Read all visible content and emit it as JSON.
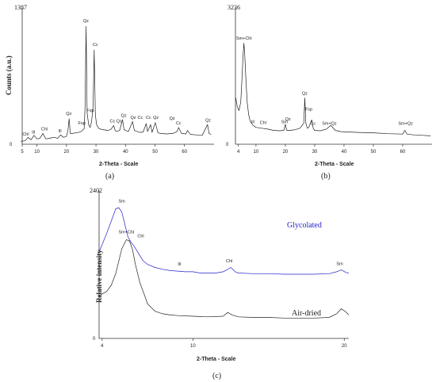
{
  "chart_data": [
    {
      "id": "a",
      "type": "line",
      "panel_label": "(a)",
      "xlabel": "2-Theta - Scale",
      "ylabel": "Counts (a.u.)",
      "xlim": [
        5,
        70
      ],
      "ylim": [
        0,
        1387
      ],
      "y_max_label": "1387",
      "y_zero_label": "0",
      "xticks": [
        5,
        10,
        20,
        30,
        40,
        50,
        60
      ],
      "color": "#222222",
      "series": [
        {
          "x": [
            4.5,
            6,
            7,
            8,
            9,
            10,
            11,
            12,
            13,
            14,
            15,
            16,
            17,
            18,
            19,
            20,
            20.5,
            20.9,
            21.3,
            22,
            23,
            24,
            25,
            26,
            26.3,
            26.65,
            27.0,
            27.5,
            28,
            28.5,
            29.0,
            29.4,
            29.8,
            30.2,
            31,
            32,
            33,
            34,
            35,
            36,
            36.5,
            37,
            38,
            39.0,
            39.5,
            40,
            41,
            42.4,
            43.0,
            44,
            45,
            46,
            47.0,
            47.5,
            48.5,
            49,
            50.1,
            51,
            52,
            54,
            56,
            57.5,
            58,
            59,
            60.5,
            61,
            62,
            64,
            66,
            67.8,
            68.3,
            69
          ],
          "y": [
            30,
            35,
            70,
            45,
            90,
            55,
            60,
            110,
            55,
            60,
            65,
            70,
            60,
            95,
            70,
            80,
            140,
            260,
            110,
            110,
            115,
            120,
            130,
            160,
            380,
            1200,
            320,
            200,
            170,
            230,
            380,
            960,
            300,
            200,
            160,
            150,
            145,
            140,
            150,
            190,
            140,
            130,
            140,
            250,
            150,
            140,
            130,
            230,
            140,
            130,
            120,
            125,
            210,
            130,
            200,
            120,
            220,
            115,
            110,
            105,
            110,
            130,
            170,
            110,
            105,
            140,
            100,
            95,
            90,
            200,
            110,
            100
          ]
        }
      ],
      "annotations": [
        {
          "text": "Chl",
          "x": 6.2,
          "y": 90
        },
        {
          "text": "Ill",
          "x": 8.8,
          "y": 110
        },
        {
          "text": "Chl",
          "x": 12.5,
          "y": 140
        },
        {
          "text": "Ill",
          "x": 17.8,
          "y": 120
        },
        {
          "text": "Qz",
          "x": 20.8,
          "y": 300
        },
        {
          "text": "Fsp",
          "x": 25.2,
          "y": 200
        },
        {
          "text": "Qz",
          "x": 26.6,
          "y": 1240
        },
        {
          "text": "Fsp",
          "x": 28.1,
          "y": 330
        },
        {
          "text": "Cc",
          "x": 29.8,
          "y": 1000
        },
        {
          "text": "Cc",
          "x": 35.6,
          "y": 220
        },
        {
          "text": "Qz",
          "x": 37.8,
          "y": 220
        },
        {
          "text": "Qz",
          "x": 39.4,
          "y": 280
        },
        {
          "text": "Qz",
          "x": 42.6,
          "y": 260
        },
        {
          "text": "Cc",
          "x": 45.0,
          "y": 260
        },
        {
          "text": "Cc",
          "x": 47.8,
          "y": 260
        },
        {
          "text": "Qz",
          "x": 50.3,
          "y": 260
        },
        {
          "text": "Qz",
          "x": 55.8,
          "y": 250
        },
        {
          "text": "Cc",
          "x": 58.0,
          "y": 200
        },
        {
          "text": "Qz",
          "x": 68.0,
          "y": 230
        }
      ]
    },
    {
      "id": "b",
      "type": "line",
      "panel_label": "(b)",
      "xlabel": "2-Theta - Scale",
      "ylabel": "",
      "xlim": [
        3,
        70
      ],
      "ylim": [
        0,
        3236
      ],
      "y_max_label": "3236",
      "y_zero_label": "0",
      "xticks": [
        4,
        10,
        20,
        30,
        40,
        50,
        60
      ],
      "color": "#222222",
      "series": [
        {
          "x": [
            3.1,
            3.6,
            4.2,
            4.8,
            5.2,
            5.6,
            5.9,
            6.2,
            6.6,
            7.0,
            7.5,
            8.0,
            9,
            10,
            12,
            14,
            16,
            18,
            19.5,
            20.0,
            20.5,
            21.5,
            23,
            25,
            26.3,
            26.65,
            27.0,
            27.5,
            28,
            29.0,
            29.5,
            30,
            32,
            34,
            35.5,
            37,
            39,
            42,
            45,
            50,
            55,
            60,
            60.7,
            61.5,
            64,
            67,
            69.5
          ],
          "y": [
            1100,
            900,
            800,
            1000,
            1500,
            2100,
            2400,
            2100,
            1500,
            1000,
            700,
            550,
            450,
            400,
            380,
            360,
            330,
            320,
            330,
            470,
            330,
            330,
            340,
            380,
            500,
            1100,
            500,
            380,
            400,
            580,
            380,
            330,
            320,
            360,
            450,
            330,
            300,
            290,
            280,
            270,
            250,
            240,
            330,
            240,
            220,
            210,
            200
          ]
        }
      ],
      "annotations": [
        {
          "text": "Sm+Chl",
          "x": 5.9,
          "y": 2480
        },
        {
          "text": "Ill",
          "x": 8.9,
          "y": 500
        },
        {
          "text": "Chl",
          "x": 12.4,
          "y": 480
        },
        {
          "text": "Sm",
          "x": 19.7,
          "y": 500
        },
        {
          "text": "Qz",
          "x": 20.9,
          "y": 560
        },
        {
          "text": "Qz",
          "x": 26.6,
          "y": 1180
        },
        {
          "text": "Fsp",
          "x": 28.0,
          "y": 800
        },
        {
          "text": "Cc",
          "x": 29.4,
          "y": 460
        },
        {
          "text": "Sm+Qz",
          "x": 35.0,
          "y": 460
        },
        {
          "text": "Sm+Qz",
          "x": 61.0,
          "y": 460
        }
      ]
    },
    {
      "id": "c",
      "type": "line",
      "panel_label": "(c)",
      "xlabel": "2-Theta - Scale",
      "ylabel": "Relative intensity",
      "xlim": [
        3.8,
        20.3
      ],
      "ylim": [
        0,
        2402
      ],
      "y_max_label": "2402",
      "y_zero_label": "0",
      "xticks": [
        4,
        10,
        20
      ],
      "series": [
        {
          "name": "Glycolated",
          "color": "#2222cc",
          "x": [
            3.8,
            4.0,
            4.3,
            4.6,
            4.9,
            5.1,
            5.3,
            5.5,
            5.7,
            5.9,
            6.1,
            6.4,
            6.7,
            7.0,
            7.5,
            8.0,
            8.5,
            9.0,
            9.5,
            10,
            10.5,
            11,
            11.5,
            12,
            12.3,
            12.5,
            12.8,
            13,
            14,
            15,
            16,
            17,
            18,
            19,
            19.5,
            19.8,
            20.1,
            20.3
          ],
          "y": [
            1400,
            1520,
            1700,
            1900,
            2100,
            2120,
            2050,
            1850,
            1650,
            1560,
            1500,
            1380,
            1260,
            1200,
            1150,
            1120,
            1100,
            1090,
            1080,
            1080,
            1060,
            1060,
            1060,
            1080,
            1120,
            1150,
            1080,
            1060,
            1050,
            1050,
            1040,
            1040,
            1040,
            1050,
            1080,
            1110,
            1070,
            1060
          ]
        },
        {
          "name": "Air-dried",
          "color": "#222222",
          "x": [
            3.8,
            4.0,
            4.3,
            4.6,
            4.9,
            5.1,
            5.3,
            5.6,
            5.8,
            6.0,
            6.2,
            6.5,
            6.8,
            7.0,
            7.5,
            8.0,
            8.5,
            9.0,
            10,
            11,
            12,
            12.3,
            12.6,
            13,
            14,
            15,
            16,
            17,
            18,
            19,
            19.5,
            19.8,
            20.1,
            20.3
          ],
          "y": [
            680,
            720,
            760,
            860,
            1050,
            1250,
            1450,
            1600,
            1580,
            1450,
            1200,
            900,
            700,
            560,
            440,
            400,
            380,
            370,
            360,
            350,
            360,
            420,
            380,
            350,
            340,
            340,
            330,
            330,
            330,
            340,
            400,
            480,
            430,
            380
          ]
        }
      ],
      "annotations": [
        {
          "text": "Sm",
          "x": 5.3,
          "y": 2200
        },
        {
          "text": "Chl",
          "x": 6.55,
          "y": 1640
        },
        {
          "text": "Ill",
          "x": 9.1,
          "y": 1180
        },
        {
          "text": "Chl",
          "x": 12.4,
          "y": 1230
        },
        {
          "text": "Sm",
          "x": 19.7,
          "y": 1190
        },
        {
          "text": "Sm+Chl",
          "x": 5.6,
          "y": 1700
        }
      ],
      "legend": [
        {
          "text": "Glycolated",
          "color": "#2222cc"
        },
        {
          "text": "Air-dried",
          "color": "#222222"
        }
      ]
    }
  ]
}
